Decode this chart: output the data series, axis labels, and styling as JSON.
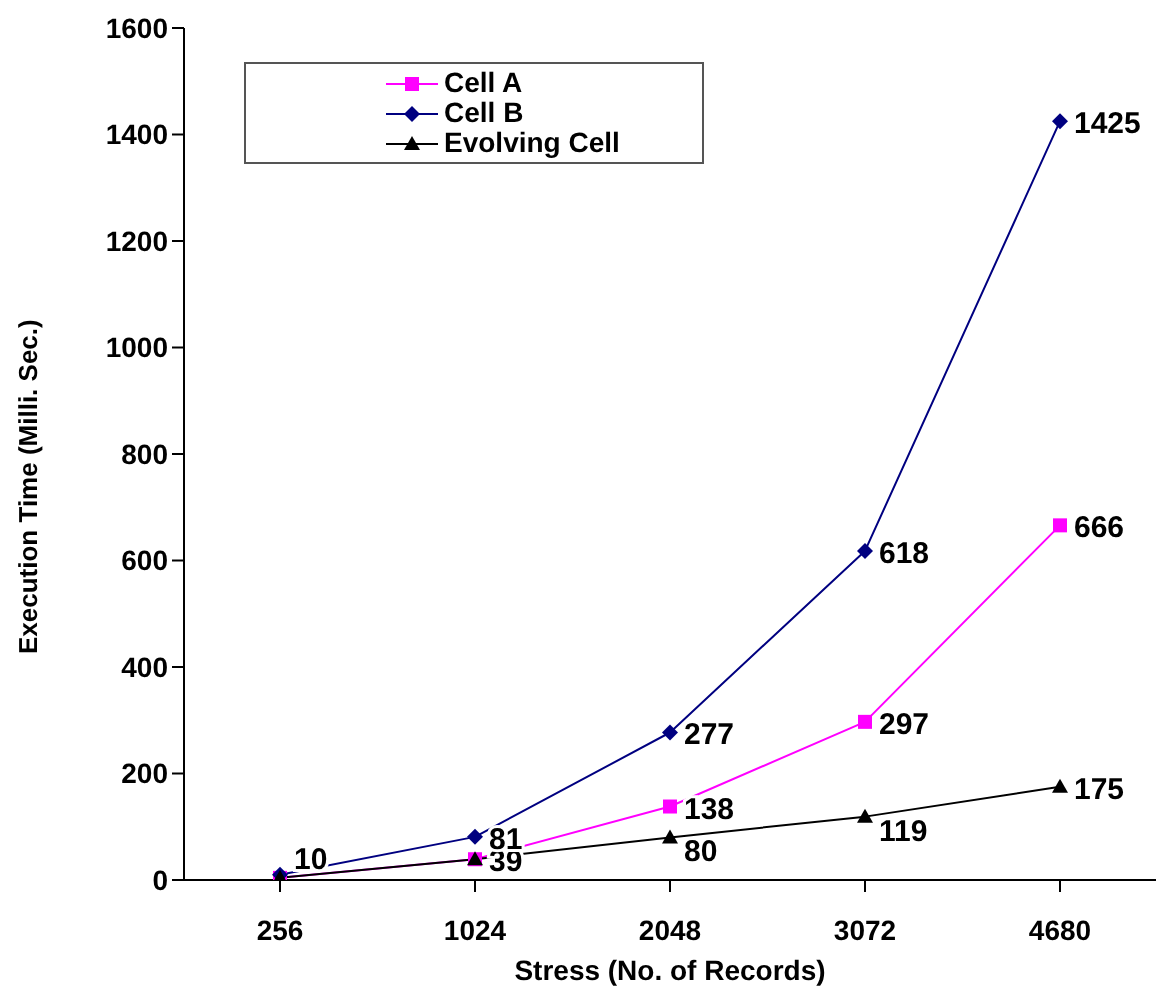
{
  "chart_data": {
    "type": "line",
    "xlabel": "Stress (No. of Records)",
    "ylabel": "Execution Time (Milli. Sec.)",
    "categories": [
      "256",
      "1024",
      "2048",
      "3072",
      "4680"
    ],
    "series": [
      {
        "name": "Cell A",
        "color": "#ff00ff",
        "marker": "square",
        "values": [
          4,
          39,
          138,
          297,
          666
        ],
        "value_labels": [
          null,
          "39",
          "138",
          "297",
          "666"
        ]
      },
      {
        "name": "Cell B",
        "color": "#000080",
        "marker": "diamond",
        "values": [
          10,
          81,
          277,
          618,
          1425
        ],
        "value_labels": [
          "10",
          "81",
          "277",
          "618",
          "1425"
        ]
      },
      {
        "name": "Evolving Cell",
        "color": "#000000",
        "marker": "triangle",
        "values": [
          4,
          39,
          80,
          119,
          175
        ],
        "value_labels": [
          null,
          null,
          "80",
          "119",
          "175"
        ]
      }
    ],
    "ylim": [
      0,
      1600
    ],
    "yticks": [
      0,
      200,
      400,
      600,
      800,
      1000,
      1200,
      1400,
      1600
    ],
    "grid": false,
    "legend": "top left"
  }
}
